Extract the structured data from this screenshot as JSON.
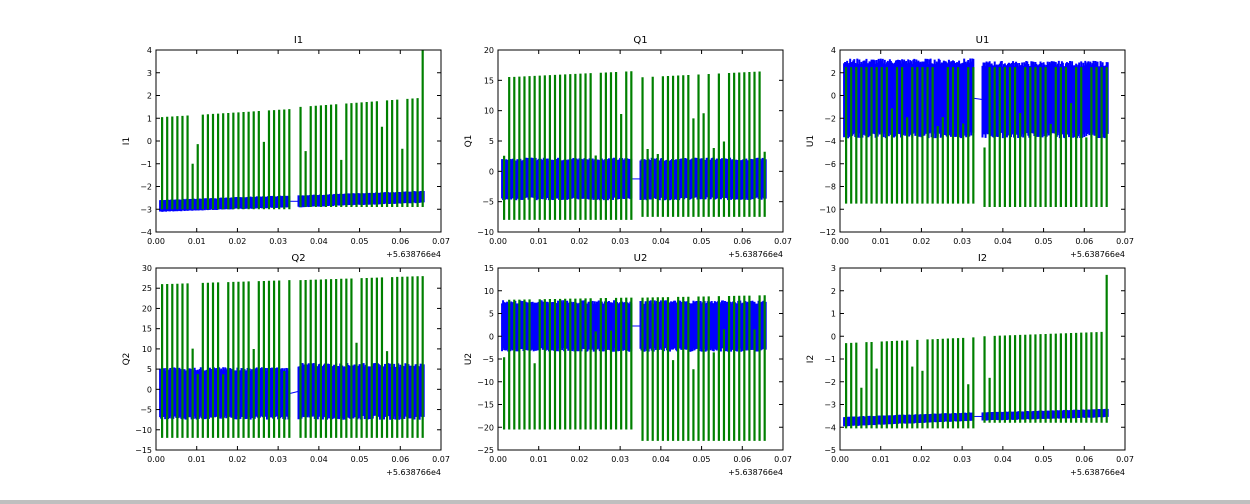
{
  "chart_data": [
    {
      "type": "line",
      "title": "I1",
      "ylabel": "I1",
      "xlim": [
        0,
        0.07
      ],
      "ylim": [
        -4,
        4
      ],
      "yticks": [
        -4,
        -3,
        -2,
        -1,
        0,
        1,
        2,
        3,
        4
      ],
      "offset_label": "+5.638766e4",
      "blue_band": [
        {
          "x": [
            0.001,
            0.033
          ],
          "lo": [
            -3.1,
            -2.9
          ],
          "hi": [
            -2.6,
            -2.4
          ]
        },
        {
          "x": [
            0.035,
            0.066
          ],
          "lo": [
            -2.9,
            -2.7
          ],
          "hi": [
            -2.4,
            -2.2
          ]
        }
      ],
      "green_spikes": [
        {
          "x": [
            0.0015,
            0.0325
          ],
          "top": [
            1.05,
            1.4
          ],
          "bottom": -3.0
        },
        {
          "x": [
            0.0355,
            0.0655
          ],
          "top": [
            1.5,
            1.9
          ],
          "bottom": -2.9
        }
      ],
      "max_spike": 4
    },
    {
      "type": "line",
      "title": "Q1",
      "ylabel": "Q1",
      "xlim": [
        0,
        0.07
      ],
      "ylim": [
        -10,
        20
      ],
      "yticks": [
        -10,
        -5,
        0,
        5,
        10,
        15,
        20
      ],
      "offset_label": "+5.638766e4",
      "blue_band": [
        {
          "x": [
            0.001,
            0.033
          ],
          "lo": [
            -4.5,
            -4.5
          ],
          "hi": [
            2,
            2
          ]
        },
        {
          "x": [
            0.035,
            0.066
          ],
          "lo": [
            -4.5,
            -4.5
          ],
          "hi": [
            2,
            2
          ]
        }
      ],
      "green_spikes": [
        {
          "x": [
            0.0015,
            0.0325
          ],
          "top": [
            15.5,
            16.5
          ],
          "bottom": -8
        },
        {
          "x": [
            0.0355,
            0.0655
          ],
          "top": [
            15.5,
            16.5
          ],
          "bottom": -7.5
        }
      ]
    },
    {
      "type": "line",
      "title": "U1",
      "ylabel": "U1",
      "xlim": [
        0,
        0.07
      ],
      "ylim": [
        -12,
        4
      ],
      "yticks": [
        -12,
        -10,
        -8,
        -6,
        -4,
        -2,
        0,
        2,
        4
      ],
      "offset_label": "+5.638766e4",
      "blue_band": [
        {
          "x": [
            0.001,
            0.033
          ],
          "lo": [
            -3.5,
            -3.5
          ],
          "hi": [
            3,
            3
          ]
        },
        {
          "x": [
            0.035,
            0.066
          ],
          "lo": [
            -3.5,
            -3.5
          ],
          "hi": [
            2.8,
            2.8
          ]
        }
      ],
      "green_spikes": [
        {
          "x": [
            0.0015,
            0.0325
          ],
          "top": [
            2.5,
            2.5
          ],
          "bottom": -9.5
        },
        {
          "x": [
            0.0355,
            0.0655
          ],
          "top": [
            2.5,
            2.5
          ],
          "bottom": -9.8
        }
      ]
    },
    {
      "type": "line",
      "title": "Q2",
      "ylabel": "Q2",
      "xlim": [
        0,
        0.07
      ],
      "ylim": [
        -15,
        30
      ],
      "yticks": [
        -15,
        -10,
        -5,
        0,
        5,
        10,
        15,
        20,
        25,
        30
      ],
      "offset_label": "+5.638766e4",
      "blue_band": [
        {
          "x": [
            0.001,
            0.033
          ],
          "lo": [
            -7,
            -7
          ],
          "hi": [
            5,
            5
          ]
        },
        {
          "x": [
            0.035,
            0.066
          ],
          "lo": [
            -7,
            -7
          ],
          "hi": [
            6,
            6
          ]
        }
      ],
      "green_spikes": [
        {
          "x": [
            0.0015,
            0.0325
          ],
          "top": [
            26,
            27
          ],
          "bottom": -12
        },
        {
          "x": [
            0.0355,
            0.0655
          ],
          "top": [
            27,
            28
          ],
          "bottom": -12
        }
      ]
    },
    {
      "type": "line",
      "title": "U2",
      "ylabel": "U2",
      "xlim": [
        0,
        0.07
      ],
      "ylim": [
        -25,
        15
      ],
      "yticks": [
        -25,
        -20,
        -15,
        -10,
        -5,
        0,
        5,
        10,
        15
      ],
      "offset_label": "+5.638766e4",
      "blue_band": [
        {
          "x": [
            0.001,
            0.033
          ],
          "lo": [
            -3,
            -3
          ],
          "hi": [
            7.5,
            7.5
          ]
        },
        {
          "x": [
            0.035,
            0.066
          ],
          "lo": [
            -3,
            -3
          ],
          "hi": [
            7.5,
            7.5
          ]
        }
      ],
      "green_spikes": [
        {
          "x": [
            0.0015,
            0.0325
          ],
          "top": [
            8,
            8.5
          ],
          "bottom": -20.5
        },
        {
          "x": [
            0.0355,
            0.0655
          ],
          "top": [
            8.5,
            9
          ],
          "bottom": -23
        }
      ]
    },
    {
      "type": "line",
      "title": "I2",
      "ylabel": "I2",
      "xlim": [
        0,
        0.07
      ],
      "ylim": [
        -5,
        3
      ],
      "yticks": [
        -5,
        -4,
        -3,
        -2,
        -1,
        0,
        1,
        2,
        3
      ],
      "offset_label": "+5.638766e4",
      "blue_band": [
        {
          "x": [
            0.001,
            0.033
          ],
          "lo": [
            -3.95,
            -3.7
          ],
          "hi": [
            -3.55,
            -3.35
          ]
        },
        {
          "x": [
            0.035,
            0.066
          ],
          "lo": [
            -3.7,
            -3.55
          ],
          "hi": [
            -3.35,
            -3.2
          ]
        }
      ],
      "green_spikes": [
        {
          "x": [
            0.0015,
            0.0325
          ],
          "top": [
            -0.3,
            -0.05
          ],
          "bottom": -4.05
        },
        {
          "x": [
            0.0355,
            0.0655
          ],
          "top": [
            0.0,
            0.2
          ],
          "bottom": -3.8
        }
      ],
      "max_spike": 2.7
    }
  ],
  "xticks": [
    "0.00",
    "0.01",
    "0.02",
    "0.03",
    "0.04",
    "0.05",
    "0.06",
    "0.07"
  ],
  "colors": {
    "series1": "#0000ff",
    "series2": "#008000"
  }
}
